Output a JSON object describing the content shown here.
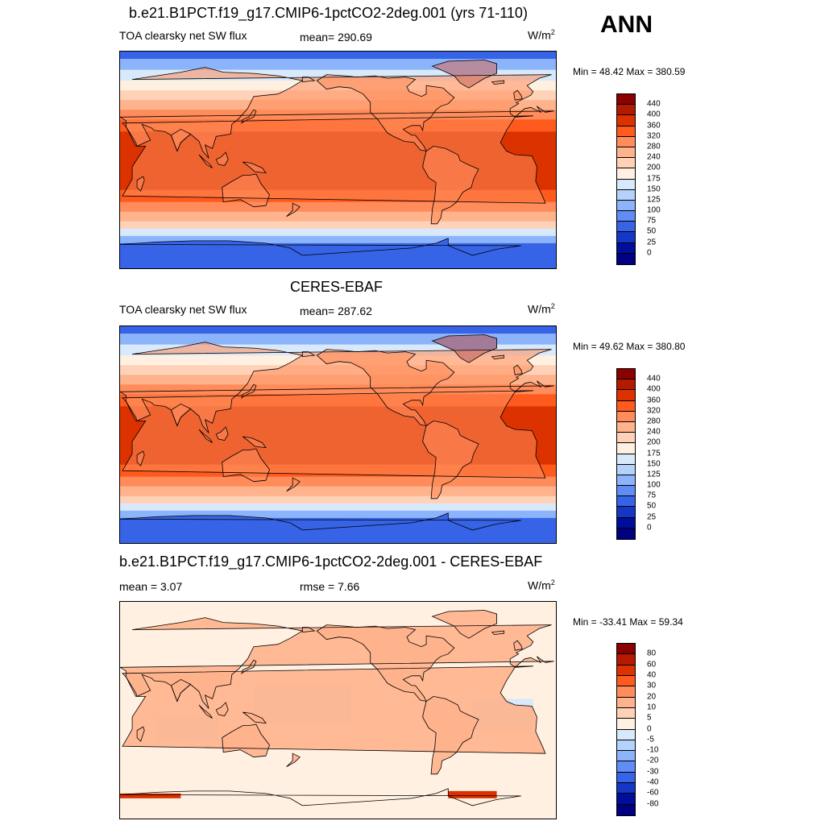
{
  "season": "ANN",
  "panels": [
    {
      "title": "b.e21.B1PCT.f19_g17.CMIP6-1pctCO2-2deg.001 (yrs 71-110)",
      "left_label": "TOA clearsky net SW flux",
      "center_label": "mean= 290.69",
      "units": "W/m",
      "units_sup": "2",
      "minmax": "Min =  48.42 Max = 380.59",
      "colorbar_labels": [
        "440",
        "400",
        "360",
        "320",
        "280",
        "240",
        "200",
        "175",
        "150",
        "125",
        "100",
        "75",
        "50",
        "25",
        "0"
      ]
    },
    {
      "title": "CERES-EBAF",
      "left_label": "TOA clearsky net SW flux",
      "center_label": "mean= 287.62",
      "units": "W/m",
      "units_sup": "2",
      "minmax": "Min =  49.62 Max = 380.80",
      "colorbar_labels": [
        "440",
        "400",
        "360",
        "320",
        "280",
        "240",
        "200",
        "175",
        "150",
        "125",
        "100",
        "75",
        "50",
        "25",
        "0"
      ]
    },
    {
      "title": "b.e21.B1PCT.f19_g17.CMIP6-1pctCO2-2deg.001 - CERES-EBAF",
      "left_label": "mean =   3.07",
      "center_label": "rmse =   7.66",
      "units": "W/m",
      "units_sup": "2",
      "minmax": "Min = -33.41 Max =  59.34",
      "colorbar_labels": [
        "80",
        "60",
        "40",
        "30",
        "20",
        "10",
        "5",
        "0",
        "-5",
        "-10",
        "-20",
        "-30",
        "-40",
        "-60",
        "-80"
      ]
    }
  ],
  "colors": {
    "abs_scale": [
      "#8b0000",
      "#b51a00",
      "#dc3200",
      "#ff5a1e",
      "#ff8c5a",
      "#ffb38c",
      "#ffd2b8",
      "#fff0e1",
      "#d7e9fa",
      "#b4d2fa",
      "#8cb4fa",
      "#5f8cf5",
      "#3764e6",
      "#1437c8",
      "#000f9b",
      "#000080"
    ],
    "diff_scale": [
      "#8b0000",
      "#b51a00",
      "#dc3200",
      "#ff5a1e",
      "#ff8c5a",
      "#ffb38c",
      "#ffd2b8",
      "#fff0e1",
      "#d7e9fa",
      "#b4d2fa",
      "#8cb4fa",
      "#5f8cf5",
      "#3764e6",
      "#1437c8",
      "#000f9b",
      "#000080"
    ]
  }
}
